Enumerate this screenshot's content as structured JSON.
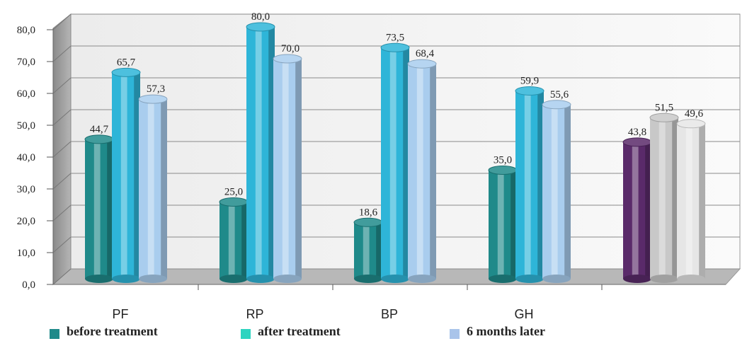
{
  "chart_data": {
    "type": "bar",
    "categories": [
      "PF",
      "RP",
      "BP",
      "GH",
      ""
    ],
    "series": [
      {
        "name": "before treatment",
        "values": [
          44.7,
          25.0,
          18.6,
          35.0,
          43.8
        ],
        "labels": [
          "44,7",
          "25,0",
          "18,6",
          "35,0",
          "43,8"
        ],
        "color": "#1f8a8a"
      },
      {
        "name": "after treatment",
        "values": [
          65.7,
          80.0,
          73.5,
          59.9,
          51.5
        ],
        "labels": [
          "65,7",
          "80,0",
          "73,5",
          "59,9",
          "51,5"
        ],
        "color": "#2eb5d8"
      },
      {
        "name": "6 months later",
        "values": [
          57.3,
          70.0,
          68.4,
          55.6,
          49.6
        ],
        "labels": [
          "57,3",
          "70,0",
          "68,4",
          "55,6",
          "49,6"
        ],
        "color": "#a9cdee"
      }
    ],
    "last_group_colors": [
      "#5a2a6a",
      "#c8c8c8",
      "#e6e6e6"
    ],
    "ylim": [
      0,
      80
    ],
    "yticks": [
      "0,0",
      "10,0",
      "20,0",
      "30,0",
      "40,0",
      "50,0",
      "60,0",
      "70,0",
      "80,0"
    ],
    "grid": true,
    "legend_position": "bottom",
    "title": "",
    "xlabel": "",
    "ylabel": ""
  },
  "legend": {
    "items": [
      {
        "label": "before treatment",
        "color": "#1f8a8a"
      },
      {
        "label": "after treatment",
        "color": "#2ed4c0"
      },
      {
        "label": "6 months later",
        "color": "#a9c4ea"
      }
    ]
  }
}
